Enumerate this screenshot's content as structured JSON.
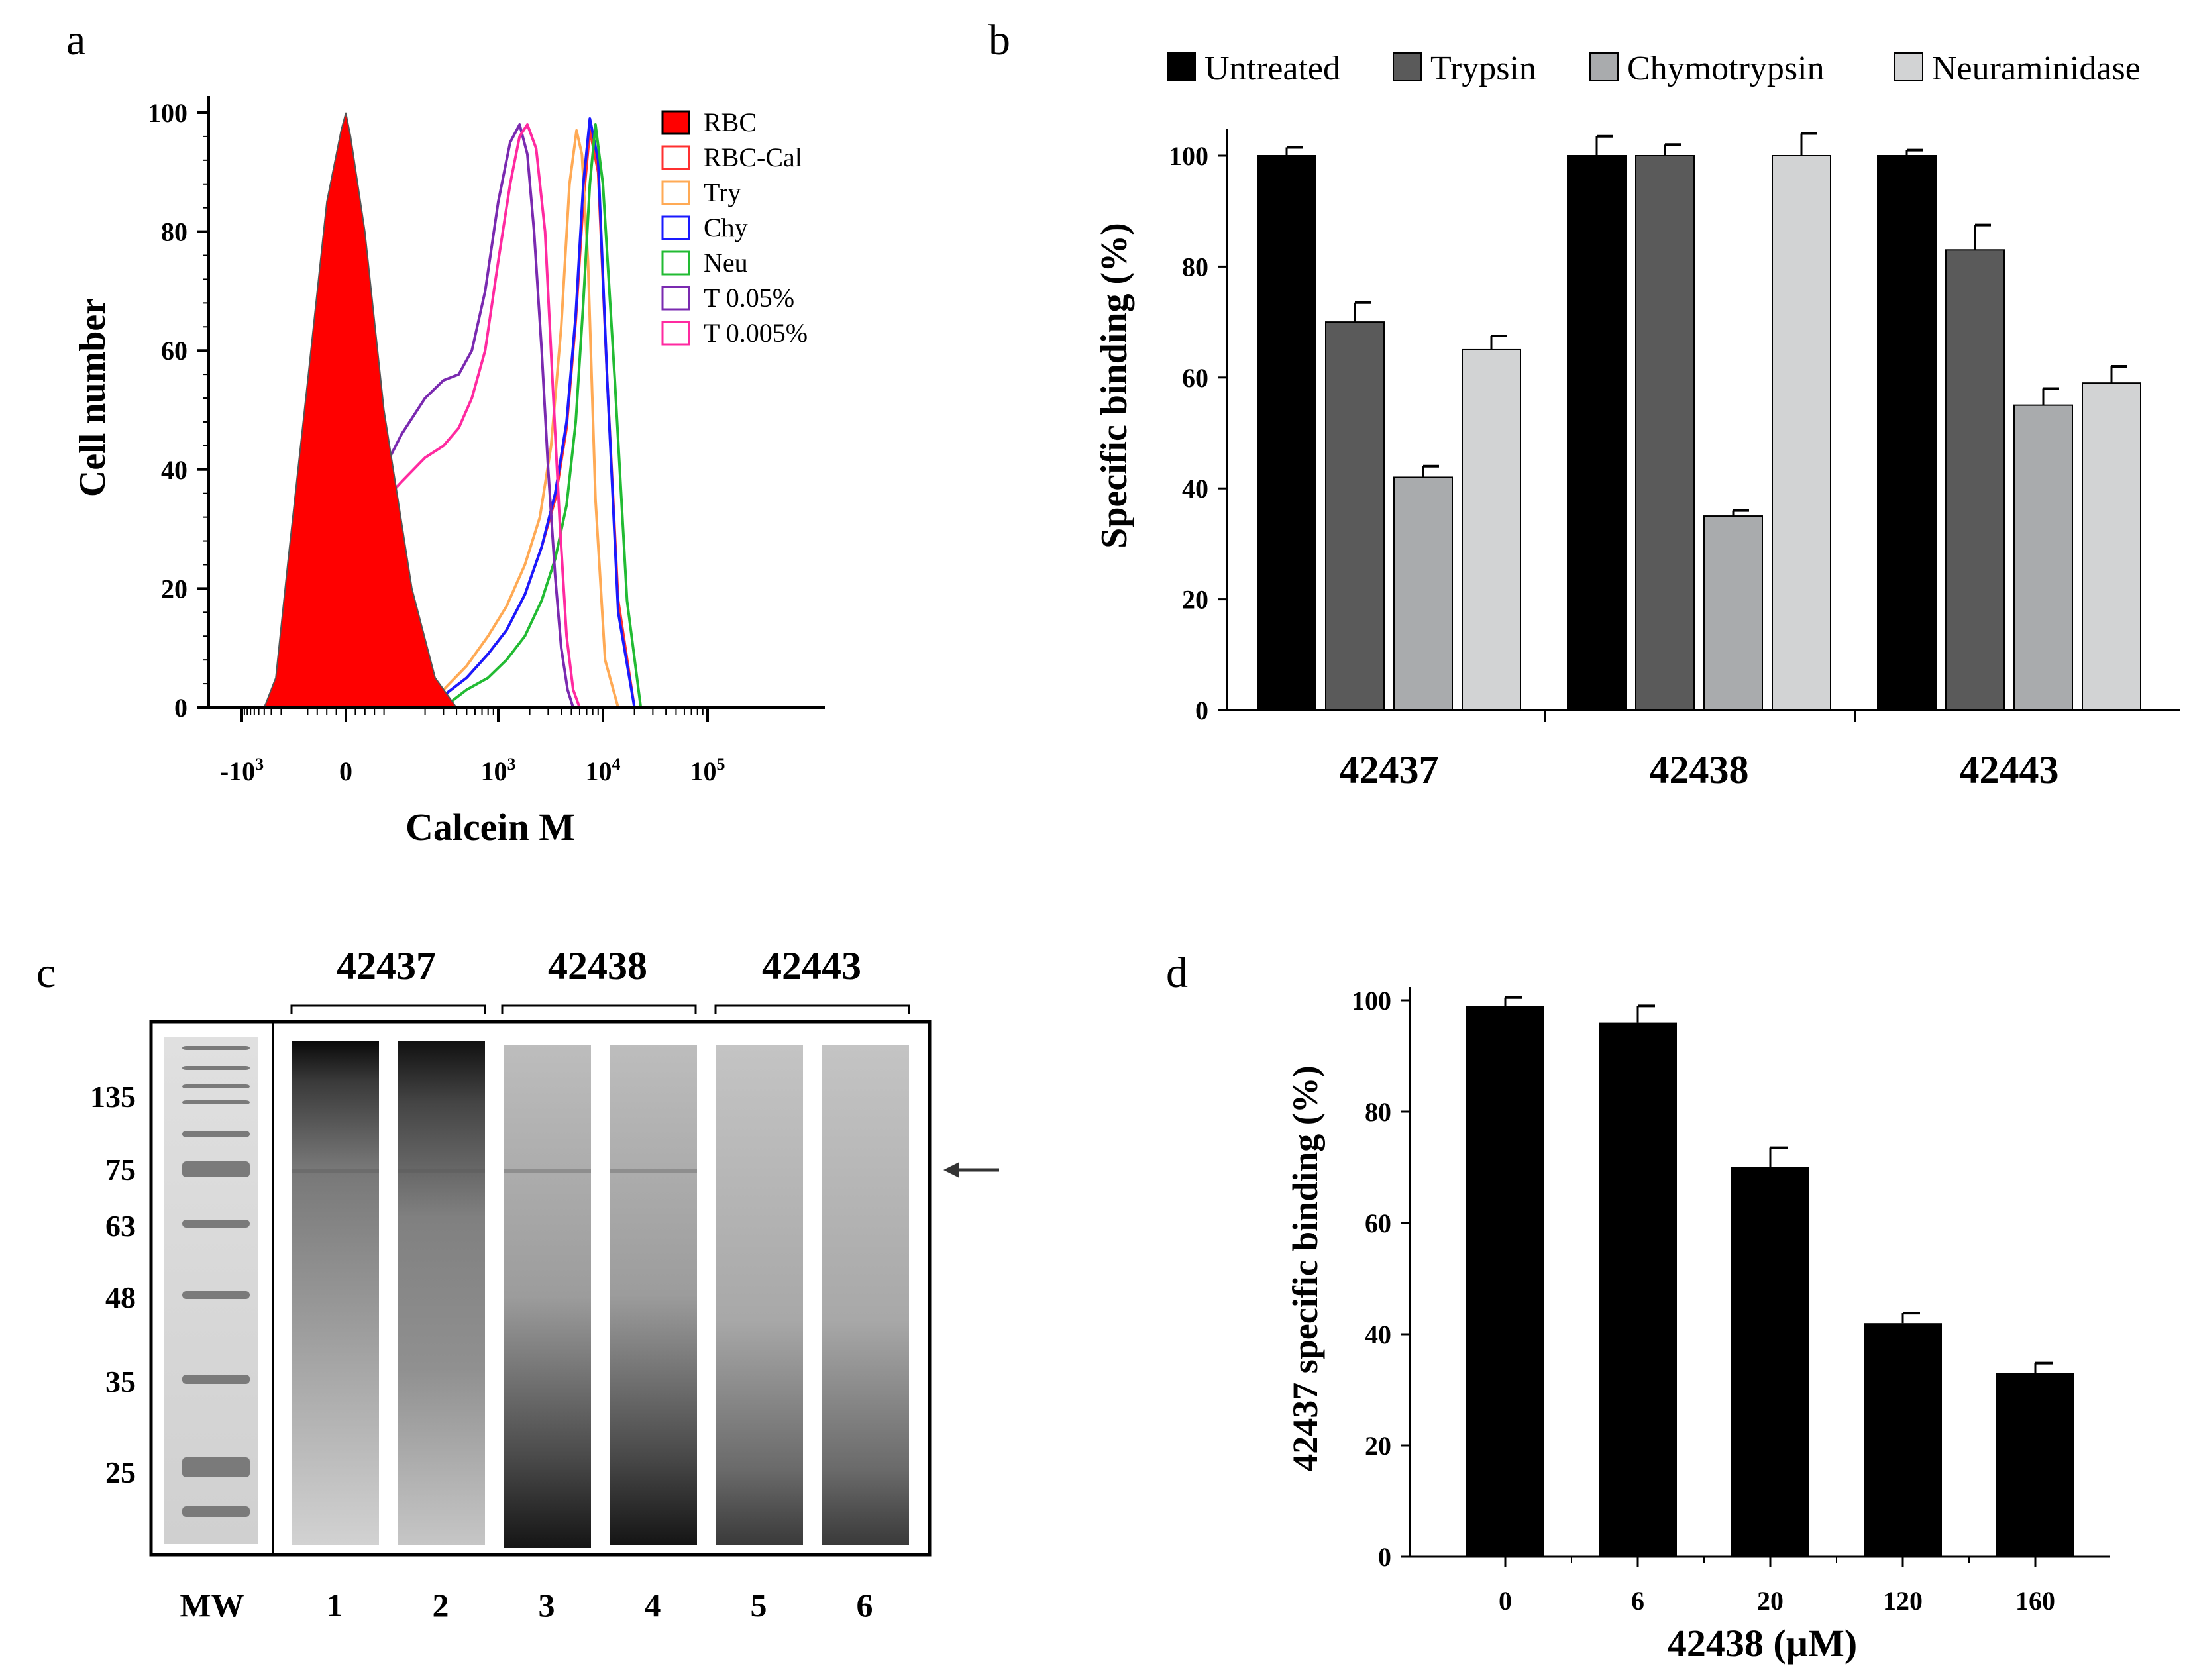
{
  "panels": {
    "a": {
      "letter": "a",
      "chart_data": {
        "type": "line",
        "title": "",
        "xlabel": "Calcein M",
        "ylabel": "Cell number",
        "ylim": [
          0,
          100
        ],
        "yticks": [
          "0",
          "20",
          "40",
          "60",
          "80",
          "100"
        ],
        "xscale": "biexponential",
        "xticks": [
          {
            "base": "-10",
            "exp": "3",
            "value": -1000
          },
          {
            "base": "0",
            "exp": "",
            "value": 0
          },
          {
            "base": "10",
            "exp": "3",
            "value": 1000
          },
          {
            "base": "10",
            "exp": "4",
            "value": 10000
          },
          {
            "base": "10",
            "exp": "5",
            "value": 100000
          }
        ],
        "legend_position": "top-right",
        "series": [
          {
            "name": "RBC",
            "color": "#ff0000",
            "filled": true,
            "x": [
              -400,
              -250,
              -150,
              -80,
              -40,
              -10,
              0,
              10,
              40,
              80,
              150,
              250,
              400
            ],
            "y": [
              0,
              5,
              25,
              55,
              85,
              97,
              100,
              96,
              80,
              50,
              20,
              5,
              0
            ]
          },
          {
            "name": "RBC-Cal",
            "color": "#ff3030",
            "filled": false,
            "x": [
              150,
              300,
              500,
              800,
              1200,
              1800,
              2600,
              3500,
              4500,
              5500,
              6500,
              7500,
              9000,
              11000,
              14000,
              20000
            ],
            "y": [
              0,
              2,
              5,
              9,
              13,
              19,
              27,
              35,
              47,
              65,
              85,
              97,
              90,
              55,
              18,
              0
            ]
          },
          {
            "name": "Try",
            "color": "#ffaa55",
            "filled": false,
            "x": [
              150,
              300,
              500,
              800,
              1200,
              1800,
              2500,
              3200,
              4000,
              4800,
              5600,
              6300,
              7200,
              8500,
              10500,
              14000
            ],
            "y": [
              0,
              3,
              7,
              12,
              17,
              24,
              32,
              44,
              64,
              88,
              97,
              93,
              75,
              35,
              8,
              0
            ]
          },
          {
            "name": "Chy",
            "color": "#1a1aff",
            "filled": false,
            "x": [
              150,
              300,
              500,
              800,
              1200,
              1800,
              2600,
              3500,
              4500,
              5500,
              6500,
              7500,
              9000,
              11000,
              14000,
              20000
            ],
            "y": [
              0,
              2,
              5,
              9,
              13,
              19,
              27,
              36,
              48,
              66,
              88,
              99,
              92,
              55,
              16,
              0
            ]
          },
          {
            "name": "Neu",
            "color": "#22bb33",
            "filled": false,
            "x": [
              300,
              500,
              800,
              1200,
              1800,
              2600,
              3500,
              4500,
              5500,
              6500,
              7500,
              8500,
              10000,
              13000,
              17000,
              23000
            ],
            "y": [
              0,
              3,
              5,
              8,
              12,
              18,
              25,
              34,
              48,
              68,
              88,
              98,
              88,
              55,
              18,
              0
            ]
          },
          {
            "name": "T 0.05%",
            "color": "#7a2ab0",
            "filled": false,
            "x": [
              -400,
              -250,
              -100,
              0,
              60,
              120,
              200,
              300,
              420,
              560,
              750,
              1000,
              1300,
              1600,
              1900,
              2200,
              2600,
              3000,
              3500,
              4000,
              4600,
              5200
            ],
            "y": [
              0,
              3,
              12,
              25,
              37,
              46,
              52,
              55,
              56,
              60,
              70,
              85,
              95,
              98,
              93,
              80,
              60,
              40,
              22,
              10,
              3,
              0
            ]
          },
          {
            "name": "T 0.005%",
            "color": "#ff2aa0",
            "filled": false,
            "x": [
              -400,
              -250,
              -100,
              0,
              60,
              120,
              200,
              300,
              420,
              560,
              750,
              1000,
              1300,
              1600,
              1900,
              2300,
              2800,
              3300,
              3900,
              4500,
              5200,
              6000
            ],
            "y": [
              0,
              3,
              12,
              25,
              33,
              38,
              42,
              44,
              47,
              52,
              60,
              75,
              88,
              96,
              98,
              94,
              80,
              55,
              30,
              12,
              3,
              0
            ]
          }
        ]
      }
    },
    "b": {
      "letter": "b",
      "chart_data": {
        "type": "bar",
        "xlabel": "",
        "ylabel": "Specific binding (%)",
        "ylim": [
          0,
          105
        ],
        "yticks": [
          "0",
          "20",
          "40",
          "60",
          "80",
          "100"
        ],
        "categories": [
          "42437",
          "42438",
          "42443"
        ],
        "legend_position": "top",
        "series": [
          {
            "name": "Untreated",
            "color": "#000000",
            "values": [
              100,
              100,
              100
            ],
            "errors": [
              1.5,
              3.5,
              1
            ]
          },
          {
            "name": "Trypsin",
            "color": "#5a5a5a",
            "values": [
              70,
              100,
              83
            ],
            "errors": [
              3.5,
              2,
              4.5
            ]
          },
          {
            "name": "Chymotrypsin",
            "color": "#a9abad",
            "values": [
              42,
              35,
              55
            ],
            "errors": [
              2,
              1,
              3
            ]
          },
          {
            "name": "Neuraminidase",
            "color": "#d2d3d4",
            "values": [
              65,
              100,
              59
            ],
            "errors": [
              2.5,
              4,
              3
            ]
          }
        ]
      }
    },
    "c": {
      "letter": "c",
      "group_labels": [
        "42437",
        "42438",
        "42443"
      ],
      "mw_markers": [
        "135",
        "75",
        "63",
        "48",
        "35",
        "25"
      ],
      "lane_labels": [
        "MW",
        "1",
        "2",
        "3",
        "4",
        "5",
        "6"
      ]
    },
    "d": {
      "letter": "d",
      "chart_data": {
        "type": "bar",
        "xlabel": "42438 (µM)",
        "ylabel": "42437 specific binding (%)",
        "ylim": [
          0,
          102
        ],
        "yticks": [
          "0",
          "20",
          "40",
          "60",
          "80",
          "100"
        ],
        "categories": [
          "0",
          "6",
          "20",
          "120",
          "160"
        ],
        "series": [
          {
            "name": "42437",
            "color": "#000000",
            "values": [
              99,
              96,
              70,
              42,
              33
            ],
            "errors": [
              1.5,
              3,
              3.5,
              1.8,
              1.8
            ]
          }
        ]
      }
    }
  }
}
